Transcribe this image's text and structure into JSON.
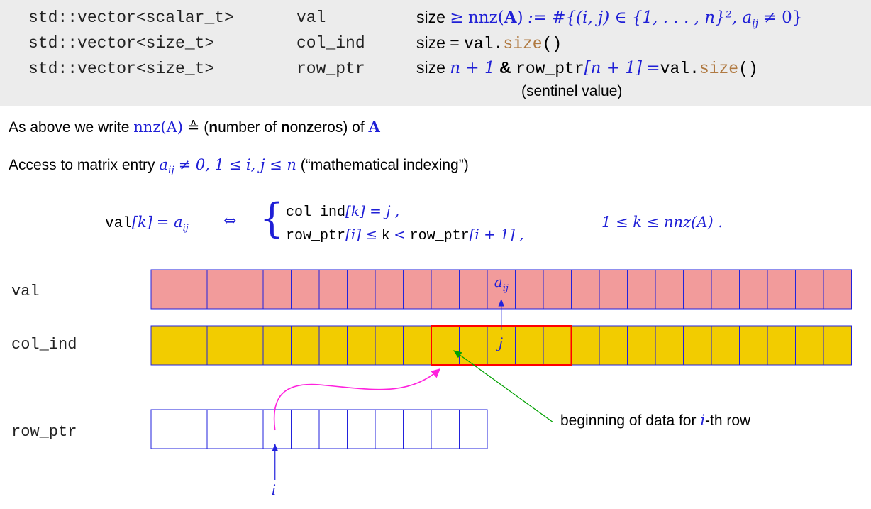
{
  "storage": {
    "rows": [
      {
        "type": "std::vector<scalar_t>",
        "name": "val",
        "size_label": "size",
        "relation": "≥",
        "nnz": "nnz",
        "A": "A",
        "def": ":= #{(i, j) ∈ {1, . . . , n}², a",
        "ij": "ij",
        "neq0": "≠ 0}"
      },
      {
        "type": "std::vector<size_t>",
        "name": "col_ind",
        "size_label": "size",
        "eq": "=",
        "val": "val",
        "dot": ".",
        "size_call": "size",
        "parens": "()"
      },
      {
        "type": "std::vector<size_t>",
        "name": "row_ptr",
        "size_label": "size",
        "n_plus_1": "n + 1",
        "amp": "&",
        "row_ptr": "row_ptr",
        "bracket_expr": "[n + 1]",
        "eq": "=",
        "val": "val",
        "dot": ".",
        "size_call": "size",
        "parens": "()"
      }
    ],
    "sentinel": "(sentinel value)"
  },
  "para1": {
    "prefix": "As above we write",
    "nnzA": "nnz(A)",
    "corresponds": "≙",
    "open": "(",
    "n1": "n",
    "umber_of": "umber of",
    "n2": "n",
    "on": "on",
    "z": "z",
    "eros": "eros) of",
    "A": "A"
  },
  "para2": {
    "prefix": "Access to matrix entry",
    "a": "a",
    "ij": "ij",
    "cond": "≠ 0, 1 ≤ i, j ≤ n",
    "suffix": "(“mathematical indexing”)"
  },
  "formula": {
    "val": "val",
    "k_bracket": "[k]",
    "eq_a": "= a",
    "ij": "ij",
    "iff": "⇔",
    "line1_code": "col_ind",
    "line1_math": "[k] = j ,",
    "line2_code1": "row_ptr",
    "line2_math1": "[i] ≤",
    "line2_k": "k",
    "line2_lt": "<",
    "line2_code2": "row_ptr",
    "line2_math2": "[i + 1] ,",
    "range": "1 ≤ k ≤ nnz(A) ."
  },
  "arrays": {
    "val_label": "val",
    "colind_label": "col_ind",
    "rowptr_label": "row_ptr",
    "val_cells": 25,
    "colind_cells": 25,
    "rowptr_cells": 12,
    "row_highlight_start": 10,
    "row_highlight_len": 5,
    "aij_cell": 12,
    "rowptr_i_cell": 4,
    "a_label": "a",
    "a_sub": "ij",
    "j_label": "j",
    "i_label": "i",
    "annotation_prefix": "beginning of data for",
    "annotation_i": "i",
    "annotation_suffix": "-th row",
    "colors": {
      "val_fill": "#f29b9b",
      "colind_fill": "#f2cc00",
      "cell_border": "#2222dd",
      "highlight_border": "#ff0000",
      "magenta_arrow": "#ff22dd",
      "green_arrow": "#00a000",
      "blue_arrow": "#2222dd"
    }
  }
}
